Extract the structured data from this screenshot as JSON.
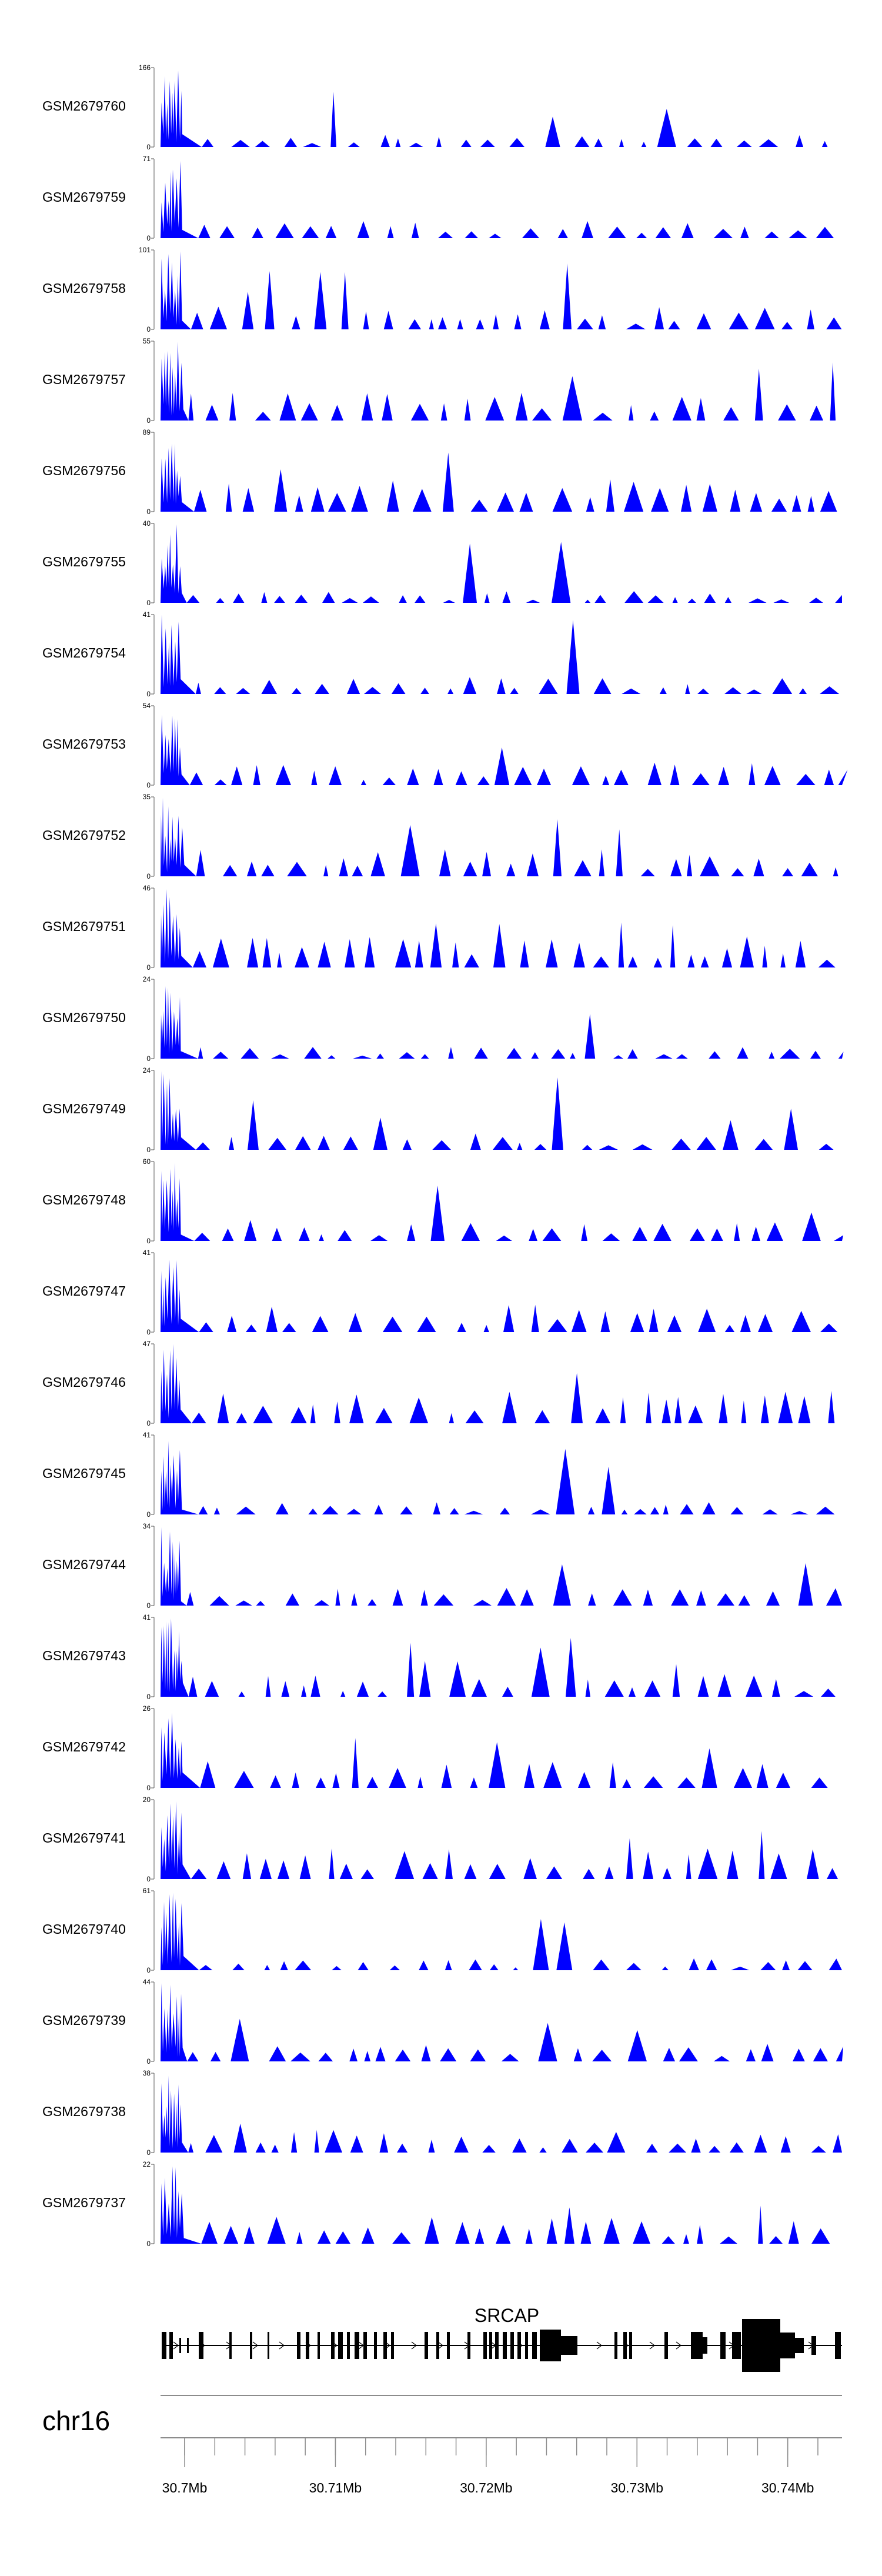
{
  "chart_data": {
    "type": "area",
    "tracks": [
      {
        "name": "GSM2679760",
        "ymax": 166,
        "ymin": 0
      },
      {
        "name": "GSM2679759",
        "ymax": 71,
        "ymin": 0
      },
      {
        "name": "GSM2679758",
        "ymax": 101,
        "ymin": 0
      },
      {
        "name": "GSM2679757",
        "ymax": 55,
        "ymin": 0
      },
      {
        "name": "GSM2679756",
        "ymax": 89,
        "ymin": 0
      },
      {
        "name": "GSM2679755",
        "ymax": 40,
        "ymin": 0
      },
      {
        "name": "GSM2679754",
        "ymax": 41,
        "ymin": 0
      },
      {
        "name": "GSM2679753",
        "ymax": 54,
        "ymin": 0
      },
      {
        "name": "GSM2679752",
        "ymax": 35,
        "ymin": 0
      },
      {
        "name": "GSM2679751",
        "ymax": 46,
        "ymin": 0
      },
      {
        "name": "GSM2679750",
        "ymax": 24,
        "ymin": 0
      },
      {
        "name": "GSM2679749",
        "ymax": 24,
        "ymin": 0
      },
      {
        "name": "GSM2679748",
        "ymax": 60,
        "ymin": 0
      },
      {
        "name": "GSM2679747",
        "ymax": 41,
        "ymin": 0
      },
      {
        "name": "GSM2679746",
        "ymax": 47,
        "ymin": 0
      },
      {
        "name": "GSM2679745",
        "ymax": 41,
        "ymin": 0
      },
      {
        "name": "GSM2679744",
        "ymax": 34,
        "ymin": 0
      },
      {
        "name": "GSM2679743",
        "ymax": 41,
        "ymin": 0
      },
      {
        "name": "GSM2679742",
        "ymax": 26,
        "ymin": 0
      },
      {
        "name": "GSM2679741",
        "ymax": 20,
        "ymin": 0
      },
      {
        "name": "GSM2679740",
        "ymax": 61,
        "ymin": 0
      },
      {
        "name": "GSM2679739",
        "ymax": 44,
        "ymin": 0
      },
      {
        "name": "GSM2679738",
        "ymax": 38,
        "ymin": 0
      },
      {
        "name": "GSM2679737",
        "ymax": 22,
        "ymin": 0
      }
    ],
    "x_range_mb": [
      30.6984,
      30.7436
    ],
    "gene": {
      "name": "SRCAP"
    },
    "chromosome": "chr16",
    "x_ticks": [
      "30.7Mb",
      "30.71Mb",
      "30.72Mb",
      "30.73Mb",
      "30.74Mb"
    ],
    "x_tick_values_mb": [
      30.7,
      30.71,
      30.72,
      30.73,
      30.74
    ],
    "fill_color": "#0000ff"
  }
}
